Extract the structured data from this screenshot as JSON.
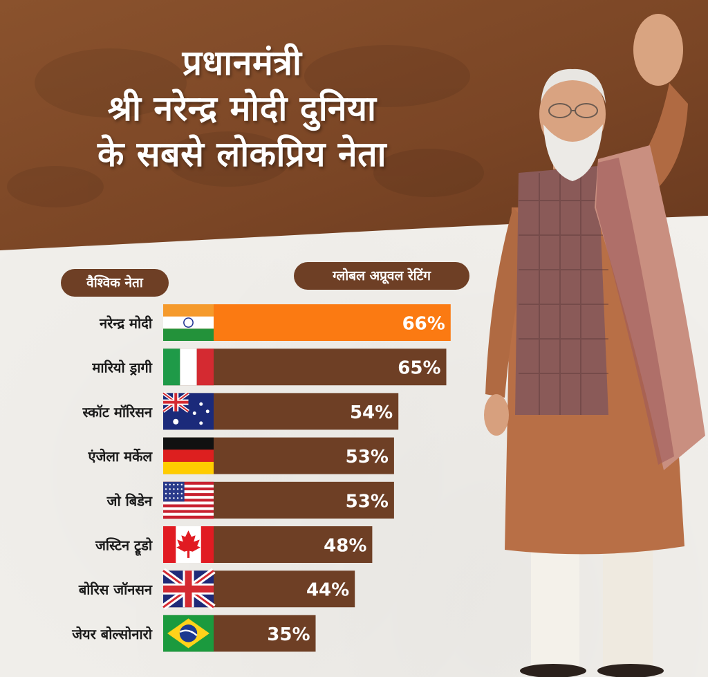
{
  "title": {
    "lines": [
      "प्रधानमंत्री",
      "श्री नरेन्द्र मोदी दुनिया",
      "के सबसे लोकप्रिय नेता"
    ]
  },
  "headers": {
    "leader": "वैश्विक नेता",
    "rating": "ग्लोबल अप्रूवल रेटिंग"
  },
  "colors": {
    "header_band": "#7a4525",
    "bar_default": "#6e3f25",
    "bar_highlight": "#fb7a12",
    "pill": "#6e3f25",
    "label_text": "#1a1a1a",
    "value_text": "#ffffff"
  },
  "chart_data": {
    "type": "bar",
    "orientation": "horizontal",
    "categories": [
      "नरेन्द्र मोदी",
      "मारियो ड्रागी",
      "स्कॉट मॉरिसन",
      "एंजेला मर्केल",
      "जो बिडेन",
      "जस्टिन ट्रूडो",
      "बोरिस जॉनसन",
      "जेयर बोल्सोनारो"
    ],
    "values": [
      66,
      65,
      54,
      53,
      53,
      48,
      44,
      35
    ],
    "value_labels": [
      "66%",
      "65%",
      "54%",
      "53%",
      "53%",
      "48%",
      "44%",
      "35%"
    ],
    "flags": [
      "india-flag",
      "italy-flag",
      "australia-flag",
      "germany-flag",
      "usa-flag",
      "canada-flag",
      "uk-flag",
      "brazil-flag"
    ],
    "highlight_index": 0,
    "xlabel": "",
    "ylabel": "",
    "grid": false,
    "legend": "none"
  }
}
